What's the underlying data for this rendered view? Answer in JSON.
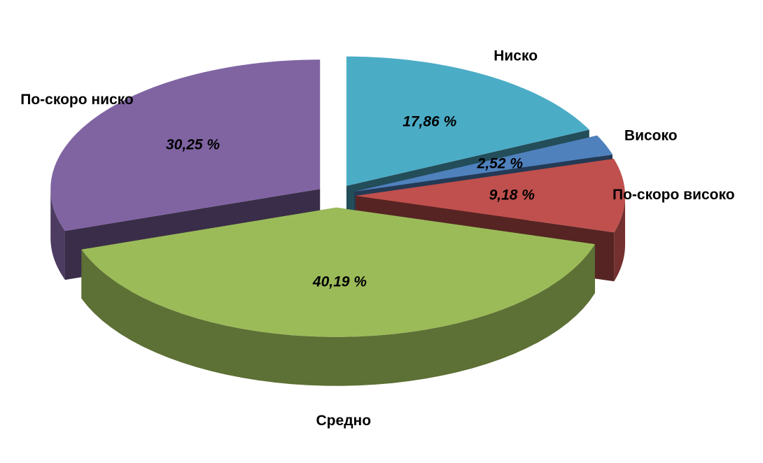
{
  "chart_data": {
    "type": "pie3d",
    "categories": [
      "Ниско",
      "Високо",
      "По-скоро високо",
      "Средно",
      "По-скоро ниско"
    ],
    "values": [
      17.86,
      2.52,
      9.18,
      40.19,
      30.25
    ],
    "value_labels": [
      "17,86 %",
      "2,52 %",
      "9,18 %",
      "40,19 %",
      "30,25 %"
    ],
    "colors": [
      "#4bacc6",
      "#4f81bd",
      "#c0504d",
      "#9bbb59",
      "#8064a2"
    ]
  }
}
